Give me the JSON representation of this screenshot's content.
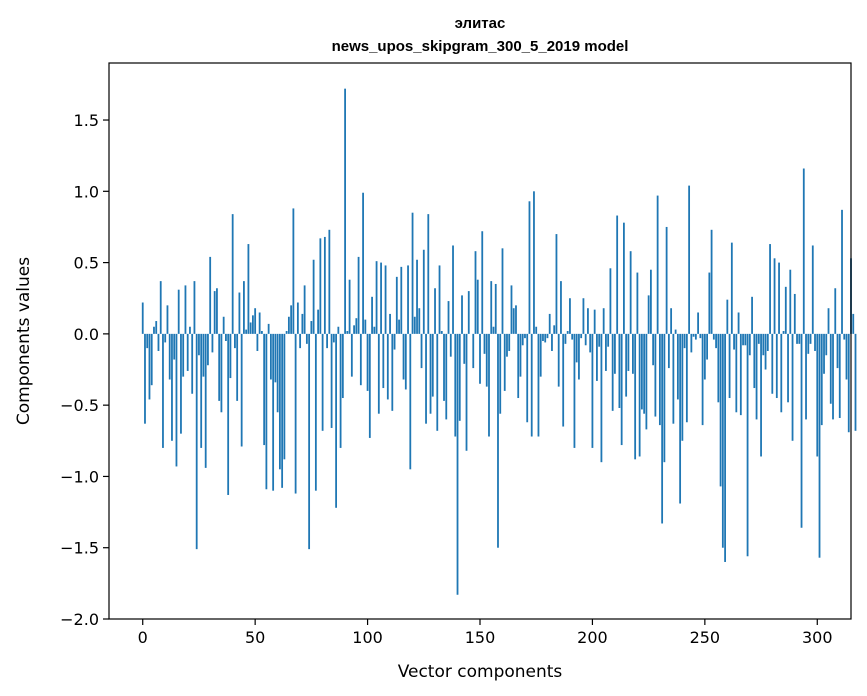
{
  "chart_data": {
    "type": "bar",
    "title": "элитас",
    "subtitle": "news_upos_skipgram_300_5_2019 model",
    "xlabel": "Vector components",
    "ylabel": "Components values",
    "xlim": [
      -15,
      315
    ],
    "ylim": [
      -2.0,
      1.9
    ],
    "xticks": [
      0,
      50,
      100,
      150,
      200,
      250,
      300
    ],
    "yticks": [
      -2.0,
      -1.5,
      -1.0,
      -0.5,
      0.0,
      0.5,
      1.0,
      1.5
    ],
    "xtick_labels": [
      "0",
      "50",
      "100",
      "150",
      "200",
      "250",
      "300"
    ],
    "ytick_labels": [
      "−2.0",
      "−1.5",
      "−1.0",
      "−0.5",
      "0.0",
      "0.5",
      "1.0",
      "1.5"
    ],
    "color": "#1f77b4",
    "x_start": 0,
    "values": [
      0.22,
      -0.63,
      -0.1,
      -0.46,
      -0.36,
      0.05,
      0.09,
      -0.12,
      0.37,
      -0.8,
      -0.06,
      0.2,
      -0.32,
      -0.75,
      -0.18,
      -0.93,
      0.31,
      -0.7,
      -0.3,
      0.34,
      -0.26,
      0.05,
      -0.42,
      0.37,
      -1.51,
      -0.15,
      -0.8,
      -0.3,
      -0.94,
      -0.22,
      0.54,
      -0.13,
      0.3,
      0.32,
      -0.47,
      -0.55,
      0.12,
      -0.05,
      -1.13,
      -0.31,
      0.84,
      -0.1,
      -0.47,
      0.29,
      -0.79,
      0.37,
      0.03,
      0.63,
      0.08,
      0.13,
      0.18,
      -0.12,
      0.15,
      0.02,
      -0.78,
      -1.09,
      0.07,
      -0.32,
      -1.1,
      -0.34,
      -0.55,
      -0.95,
      -1.08,
      -0.88,
      0.02,
      0.12,
      0.2,
      0.88,
      -1.12,
      0.22,
      -0.1,
      0.14,
      0.34,
      -0.07,
      -1.51,
      0.09,
      0.52,
      -1.1,
      0.17,
      0.67,
      -0.68,
      0.68,
      -0.1,
      0.73,
      -0.66,
      -0.06,
      -1.22,
      0.05,
      -0.8,
      -0.45,
      1.72,
      0.02,
      0.38,
      -0.3,
      0.06,
      0.11,
      0.54,
      -0.36,
      0.99,
      0.1,
      -0.4,
      -0.73,
      0.26,
      0.05,
      0.51,
      -0.56,
      0.5,
      -0.38,
      0.48,
      -0.46,
      0.14,
      -0.54,
      -0.11,
      0.4,
      0.1,
      0.47,
      -0.32,
      -0.39,
      0.48,
      -0.95,
      0.85,
      0.12,
      0.52,
      0.18,
      -0.24,
      0.59,
      -0.63,
      0.84,
      -0.56,
      -0.44,
      0.32,
      -0.68,
      0.48,
      0.02,
      -0.47,
      -0.6,
      0.23,
      -0.16,
      0.62,
      -0.72,
      -1.83,
      -0.61,
      0.27,
      -0.21,
      -0.82,
      0.3,
      0.0,
      -0.24,
      0.58,
      0.38,
      -0.35,
      0.72,
      -0.14,
      -0.37,
      -0.72,
      0.37,
      0.05,
      0.35,
      -1.5,
      -0.56,
      0.6,
      -0.4,
      -0.16,
      -0.12,
      0.34,
      0.18,
      0.2,
      -0.45,
      -0.3,
      -0.08,
      -0.03,
      -0.62,
      0.93,
      -0.72,
      1.0,
      0.05,
      -0.72,
      -0.3,
      -0.05,
      -0.06,
      -0.03,
      0.14,
      -0.12,
      0.06,
      0.7,
      -0.37,
      0.37,
      -0.65,
      -0.07,
      0.02,
      0.25,
      -0.04,
      -0.8,
      -0.2,
      -0.32,
      -0.03,
      0.25,
      -0.08,
      0.18,
      -0.13,
      -0.8,
      0.17,
      -0.33,
      -0.09,
      -0.9,
      0.18,
      -0.26,
      -0.09,
      0.46,
      -0.54,
      -0.28,
      0.83,
      -0.52,
      -0.78,
      0.78,
      -0.44,
      -0.26,
      0.58,
      -0.28,
      -0.88,
      0.43,
      -0.86,
      -0.53,
      -0.56,
      -0.67,
      0.27,
      0.45,
      -0.22,
      -0.58,
      0.97,
      -0.64,
      -1.33,
      -0.9,
      0.75,
      -0.24,
      0.18,
      -0.63,
      0.03,
      -0.46,
      -1.19,
      -0.75,
      -0.1,
      -0.62,
      1.04,
      -0.13,
      -0.02,
      -0.04,
      0.15,
      -0.03,
      -0.64,
      -0.32,
      -0.18,
      0.43,
      0.73,
      -0.04,
      -0.1,
      -0.48,
      -1.07,
      -1.5,
      -1.6,
      0.24,
      -0.45,
      0.64,
      -0.11,
      -0.55,
      0.15,
      -0.57,
      -0.08,
      -0.08,
      -1.56,
      -0.15,
      0.26,
      -0.38,
      -0.6,
      -0.07,
      -0.86,
      -0.15,
      -0.25,
      -0.12,
      0.63,
      -0.42,
      0.53,
      -0.45,
      0.5,
      -0.55,
      0.02,
      0.33,
      -0.48,
      0.45,
      -0.75,
      0.28,
      -0.07,
      -0.07,
      -1.36,
      1.16,
      -0.6,
      -0.14,
      -0.07,
      0.62,
      -0.12,
      -0.86,
      -1.57,
      -0.64,
      -0.28,
      -0.15,
      0.18,
      -0.49,
      -0.6,
      0.32,
      -0.24,
      -0.59,
      0.87,
      -0.04,
      -0.32,
      -0.69,
      0.53,
      0.14,
      -0.68
    ]
  }
}
